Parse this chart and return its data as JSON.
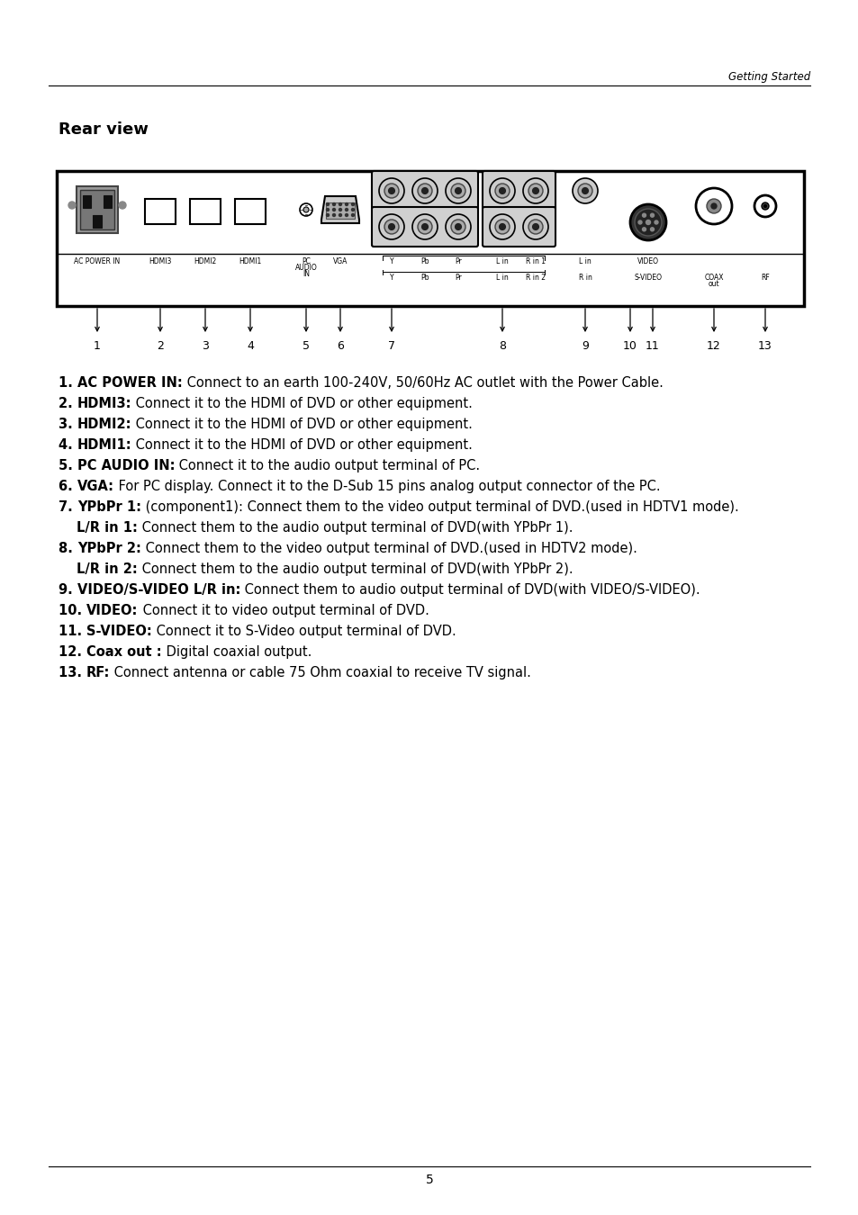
{
  "bg_color": "#ffffff",
  "header_text": "Getting Started",
  "title": "Rear view",
  "page_number": "5",
  "items": [
    {
      "num": "1.",
      "bold": "AC POWER IN:",
      "text": " Connect to an earth 100-240V, 50/60Hz AC outlet with the Power Cable.",
      "indent": false
    },
    {
      "num": "2.",
      "bold": "HDMI3:",
      "text": " Connect it to the HDMI of DVD or other equipment.",
      "indent": false
    },
    {
      "num": "3.",
      "bold": "HDMI2:",
      "text": " Connect it to the HDMI of DVD or other equipment.",
      "indent": false
    },
    {
      "num": "4.",
      "bold": "HDMI1:",
      "text": " Connect it to the HDMI of DVD or other equipment.",
      "indent": false
    },
    {
      "num": "5.",
      "bold": "PC AUDIO IN:",
      "text": " Connect it to the audio output terminal of PC.",
      "indent": false
    },
    {
      "num": "6.",
      "bold": "VGA:",
      "text": " For PC display. Connect it to the D-Sub 15 pins analog output connector of the PC.",
      "indent": false
    },
    {
      "num": "7.",
      "bold": "YPbPr 1:",
      "text": " (component1): Connect them to the video output terminal of DVD.(used in HDTV1 mode).",
      "indent": false
    },
    {
      "num": "",
      "bold": "L/R in 1:",
      "text": " Connect them to the audio output terminal of DVD(with YPbPr 1).",
      "indent": true
    },
    {
      "num": "8.",
      "bold": "YPbPr 2:",
      "text": " Connect them to the video output terminal of DVD.(used in HDTV2 mode).",
      "indent": false
    },
    {
      "num": "",
      "bold": "L/R in 2:",
      "text": " Connect them to the audio output terminal of DVD(with YPbPr 2).",
      "indent": true
    },
    {
      "num": "9.",
      "bold": "VIDEO/S-VIDEO L/R in:",
      "text": " Connect them to audio output terminal of DVD(with VIDEO/S-VIDEO).",
      "indent": false
    },
    {
      "num": "10.",
      "bold": "VIDEO:",
      "text": " Connect it to video output terminal of DVD.",
      "indent": false
    },
    {
      "num": "11.",
      "bold": "S-VIDEO:",
      "text": " Connect it to S-Video output terminal of DVD.",
      "indent": false
    },
    {
      "num": "12.",
      "bold": "Coax out :",
      "text": " Digital coaxial output.",
      "indent": false
    },
    {
      "num": "13.",
      "bold": "RF:",
      "text": " Connect antenna or cable 75 Ohm coaxial to receive TV signal.",
      "indent": false
    }
  ]
}
